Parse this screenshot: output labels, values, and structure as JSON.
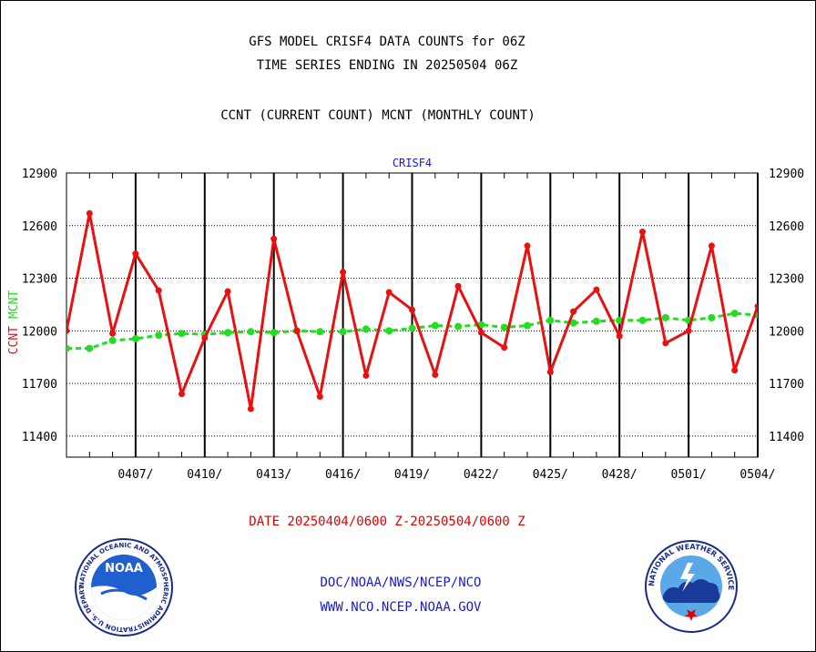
{
  "header": {
    "title_line1": "GFS MODEL CRISF4 DATA COUNTS for 06Z",
    "title_line2": "TIME SERIES ENDING IN 20250504 06Z",
    "subtitle": "CCNT (CURRENT COUNT) MCNT (MONTHLY COUNT)"
  },
  "footer": {
    "date_range": "DATE 20250404/0600 Z-20250504/0600 Z",
    "org_line1": "DOC/NOAA/NWS/NCEP/NCO",
    "org_line2": "WWW.NCO.NCEP.NOAA.GOV"
  },
  "logos": {
    "noaa_text": "NOAA",
    "noaa_ring": "NATIONAL OCEANIC AND ATMOSPHERIC ADMINISTRATION U.S. DEPARTMENT OF COMMERCE",
    "nws_ring": "NATIONAL WEATHER SERVICE"
  },
  "colors": {
    "ccnt": "#e81010",
    "mcnt": "#22dd22",
    "panel_label": "#1a1ad0",
    "grid": "#000000"
  },
  "chart_data": {
    "type": "line",
    "title": "CRISF4",
    "ylabel_left": "CCNT",
    "ylabel_right": "MCNT",
    "ylim": [
      11280,
      12900
    ],
    "yticks": [
      11400,
      11700,
      12000,
      12300,
      12600,
      12900
    ],
    "xlim": [
      0,
      30
    ],
    "xticks": [
      {
        "x": 3,
        "label": "0407/"
      },
      {
        "x": 6,
        "label": "0410/"
      },
      {
        "x": 9,
        "label": "0413/"
      },
      {
        "x": 12,
        "label": "0416/"
      },
      {
        "x": 15,
        "label": "0419/"
      },
      {
        "x": 18,
        "label": "0422/"
      },
      {
        "x": 21,
        "label": "0425/"
      },
      {
        "x": 24,
        "label": "0428/"
      },
      {
        "x": 27,
        "label": "0501/"
      },
      {
        "x": 30,
        "label": "0504/"
      }
    ],
    "grid": true,
    "series": [
      {
        "name": "CCNT",
        "x": [
          0,
          1,
          2,
          3,
          4,
          5,
          6,
          7,
          8,
          9,
          10,
          11,
          12,
          13,
          14,
          15,
          16,
          17,
          18,
          19,
          20,
          21,
          22,
          23,
          24,
          25,
          26,
          27,
          28,
          29,
          30
        ],
        "values": [
          12000,
          12670,
          11985,
          12440,
          12230,
          11640,
          11960,
          12225,
          11555,
          12525,
          12000,
          11625,
          12335,
          11745,
          12220,
          12120,
          11750,
          12255,
          11990,
          11905,
          12485,
          11765,
          12110,
          12235,
          11970,
          12565,
          11930,
          12000,
          12485,
          11775,
          12140
        ]
      },
      {
        "name": "MCNT",
        "x": [
          0,
          1,
          2,
          3,
          4,
          5,
          6,
          7,
          8,
          9,
          10,
          11,
          12,
          13,
          14,
          15,
          16,
          17,
          18,
          19,
          20,
          21,
          22,
          23,
          24,
          25,
          26,
          27,
          28,
          29,
          30
        ],
        "values": [
          11900,
          11900,
          11945,
          11955,
          11975,
          11985,
          11980,
          11990,
          11995,
          11990,
          12000,
          11995,
          11995,
          12010,
          12000,
          12015,
          12030,
          12025,
          12035,
          12020,
          12030,
          12060,
          12045,
          12055,
          12060,
          12060,
          12075,
          12060,
          12075,
          12100,
          12090
        ]
      }
    ]
  }
}
